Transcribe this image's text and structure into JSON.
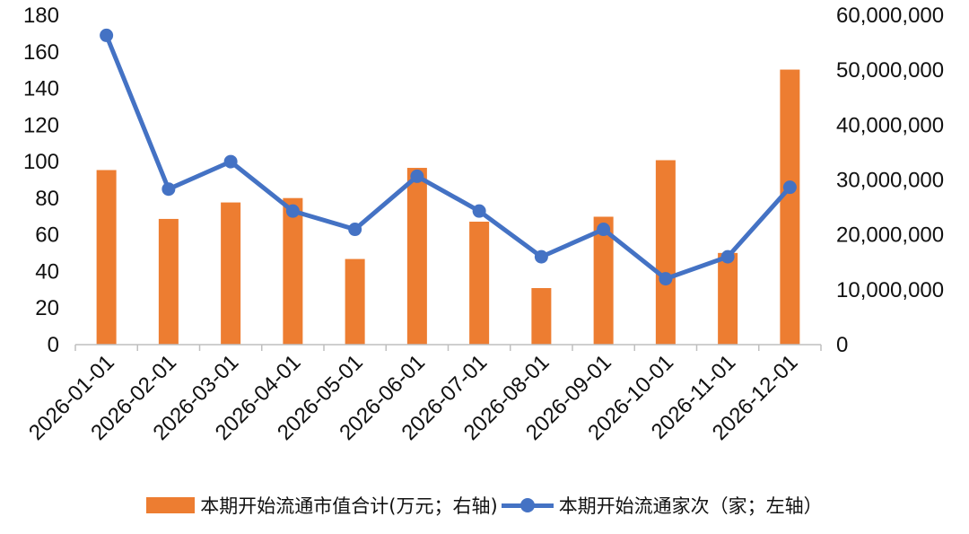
{
  "colors": {
    "bar": "#ED7D31",
    "line": "#4472C4",
    "axis": "#BFBFBF",
    "text": "#111111"
  },
  "chart_data": {
    "type": "bar+line",
    "categories": [
      "2026-01-01",
      "2026-02-01",
      "2026-03-01",
      "2026-04-01",
      "2026-05-01",
      "2026-06-01",
      "2026-07-01",
      "2026-08-01",
      "2026-09-01",
      "2026-10-01",
      "2026-11-01",
      "2026-12-01"
    ],
    "series": [
      {
        "name": "本期开始流通市值合计(万元；右轴)",
        "type": "bar",
        "axis": "right",
        "values": [
          31800000,
          22900000,
          25900000,
          26700000,
          15600000,
          32200000,
          22400000,
          10300000,
          23300000,
          33600000,
          16700000,
          50100000
        ]
      },
      {
        "name": "本期开始流通家次（家；左轴）",
        "type": "line",
        "axis": "left",
        "values": [
          169,
          85,
          100,
          73,
          63,
          92,
          73,
          48,
          63,
          36,
          48,
          86
        ]
      }
    ],
    "left_axis": {
      "min": 0,
      "max": 180,
      "ticks": [
        "0",
        "20",
        "40",
        "60",
        "80",
        "100",
        "120",
        "140",
        "160",
        "180"
      ]
    },
    "right_axis": {
      "min": 0,
      "max": 60000000,
      "ticks": [
        "0",
        "10,000,000",
        "20,000,000",
        "30,000,000",
        "40,000,000",
        "50,000,000",
        "60,000,000"
      ]
    },
    "grid": false,
    "legend_position": "bottom"
  }
}
